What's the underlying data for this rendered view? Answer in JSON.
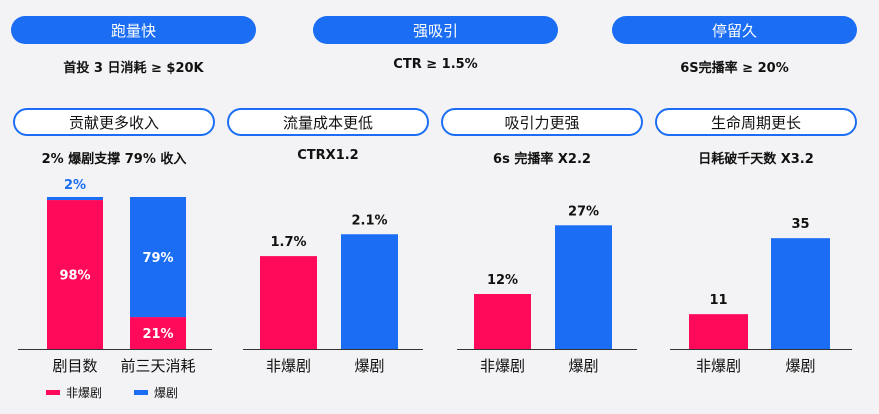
{
  "colors": {
    "accent": "#1b6ef3",
    "non_hit": "#ff0a5a",
    "hit": "#1b6ef3"
  },
  "top_row": [
    {
      "title": "跑量快",
      "desc": "首投 3 日消耗 ≥ $20K"
    },
    {
      "title": "强吸引",
      "desc": "CTR ≥ 1.5%"
    },
    {
      "title": "停留久",
      "desc": "6S完播率 ≥ 20%"
    }
  ],
  "panels": [
    {
      "title": "贡献更多收入",
      "caption": "2% 爆剧支撑 79% 收入"
    },
    {
      "title": "流量成本更低",
      "caption": "CTRX1.2"
    },
    {
      "title": "吸引力更强",
      "caption": "6s 完播率 X2.2"
    },
    {
      "title": "生命周期更长",
      "caption": "日耗破千天数 X3.2"
    }
  ],
  "legend": {
    "non_hit": "非爆剧",
    "hit": "爆剧"
  },
  "chart_data": [
    {
      "type": "bar",
      "stacked": true,
      "categories": [
        "剧目数",
        "前三天消耗"
      ],
      "series": [
        {
          "name": "非爆剧",
          "values": [
            98,
            21
          ],
          "labels": [
            "98%",
            "21%"
          ]
        },
        {
          "name": "爆剧",
          "values": [
            2,
            79
          ],
          "labels": [
            "2%",
            "79%"
          ]
        }
      ],
      "ylim": [
        0,
        100
      ]
    },
    {
      "type": "bar",
      "categories": [
        "非爆剧",
        "爆剧"
      ],
      "values": [
        1.7,
        2.1
      ],
      "labels": [
        "1.7%",
        "2.1%"
      ],
      "ylim": [
        0,
        2.8
      ]
    },
    {
      "type": "bar",
      "categories": [
        "非爆剧",
        "爆剧"
      ],
      "values": [
        12,
        27
      ],
      "labels": [
        "12%",
        "27%"
      ],
      "ylim": [
        0,
        27.5
      ]
    },
    {
      "type": "bar",
      "categories": [
        "非爆剧",
        "爆剧"
      ],
      "values": [
        11,
        35
      ],
      "labels": [
        "11",
        "35"
      ],
      "ylim": [
        0,
        48
      ]
    }
  ]
}
